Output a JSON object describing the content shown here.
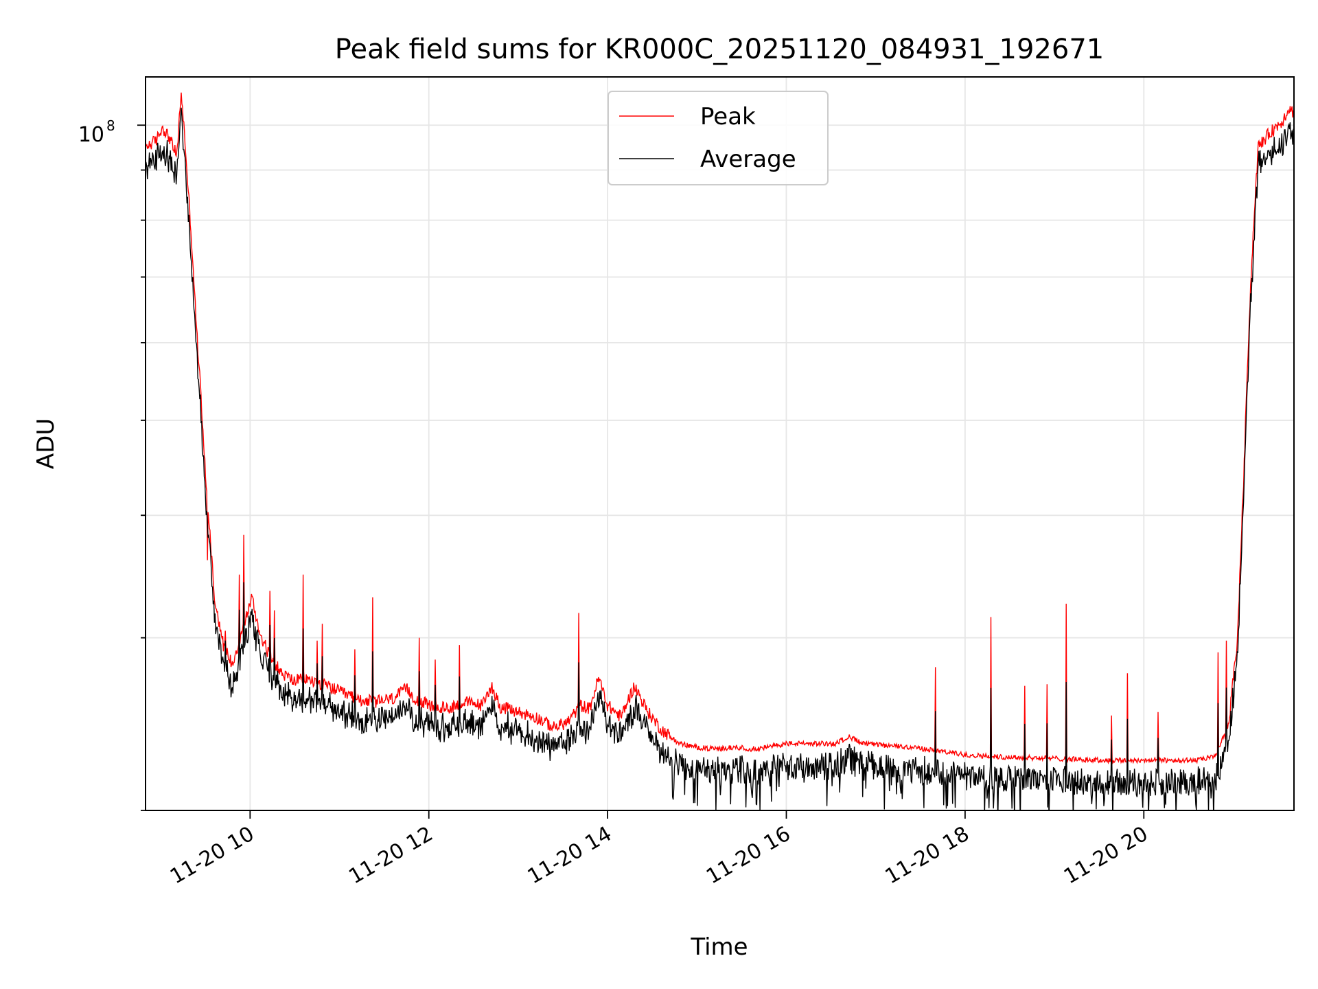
{
  "chart_data": {
    "type": "line",
    "title": "Peak field sums for KR000C_20251120_084931_192671",
    "xlabel": "Time",
    "ylabel": "ADU",
    "yscale": "log",
    "ytick_major": {
      "base": "10",
      "exponent": "8",
      "value": 100000000
    },
    "xlim_hours": [
      8.83,
      21.68
    ],
    "ylim": [
      20000000,
      112000000
    ],
    "grid": true,
    "legend_position": "top-center",
    "x_ticks": [
      {
        "hour": 10,
        "label": "11-20 10"
      },
      {
        "hour": 12,
        "label": "11-20 12"
      },
      {
        "hour": 14,
        "label": "11-20 14"
      },
      {
        "hour": 16,
        "label": "11-20 16"
      },
      {
        "hour": 18,
        "label": "11-20 18"
      },
      {
        "hour": 20,
        "label": "11-20 20"
      }
    ],
    "series": [
      {
        "name": "Peak",
        "color": "#ff0000"
      },
      {
        "name": "Average",
        "color": "#000000"
      }
    ],
    "baseline": [
      [
        8.83,
        95.0
      ],
      [
        8.95,
        96.5
      ],
      [
        9.02,
        99.5
      ],
      [
        9.1,
        97.0
      ],
      [
        9.18,
        93.0
      ],
      [
        9.23,
        108.0
      ],
      [
        9.3,
        88.0
      ],
      [
        9.4,
        62.0
      ],
      [
        9.5,
        44.0
      ],
      [
        9.6,
        33.0
      ],
      [
        9.7,
        29.5
      ],
      [
        9.8,
        28.2
      ],
      [
        9.9,
        30.2
      ],
      [
        10.02,
        33.0
      ],
      [
        10.1,
        30.5
      ],
      [
        10.2,
        29.0
      ],
      [
        10.35,
        27.6
      ],
      [
        10.5,
        27.1
      ],
      [
        10.6,
        27.3
      ],
      [
        10.7,
        27.1
      ],
      [
        10.8,
        26.9
      ],
      [
        10.9,
        26.7
      ],
      [
        11.05,
        26.3
      ],
      [
        11.2,
        26.0
      ],
      [
        11.4,
        25.8
      ],
      [
        11.6,
        26.0
      ],
      [
        11.75,
        26.6
      ],
      [
        11.85,
        26.0
      ],
      [
        12.0,
        25.6
      ],
      [
        12.2,
        25.4
      ],
      [
        12.4,
        25.8
      ],
      [
        12.6,
        25.6
      ],
      [
        12.7,
        26.8
      ],
      [
        12.8,
        25.5
      ],
      [
        13.0,
        25.2
      ],
      [
        13.2,
        24.9
      ],
      [
        13.4,
        24.3
      ],
      [
        13.55,
        24.6
      ],
      [
        13.7,
        25.6
      ],
      [
        13.8,
        25.4
      ],
      [
        13.9,
        27.3
      ],
      [
        14.0,
        25.6
      ],
      [
        14.15,
        24.9
      ],
      [
        14.3,
        26.8
      ],
      [
        14.45,
        25.2
      ],
      [
        14.6,
        24.2
      ],
      [
        14.7,
        23.8
      ],
      [
        14.8,
        23.4
      ],
      [
        15.0,
        23.2
      ],
      [
        15.2,
        23.1
      ],
      [
        15.45,
        23.2
      ],
      [
        15.6,
        23.1
      ],
      [
        15.8,
        23.2
      ],
      [
        16.0,
        23.4
      ],
      [
        16.3,
        23.4
      ],
      [
        16.55,
        23.4
      ],
      [
        16.7,
        23.8
      ],
      [
        16.85,
        23.4
      ],
      [
        17.1,
        23.3
      ],
      [
        17.4,
        23.2
      ],
      [
        17.7,
        23.0
      ],
      [
        18.0,
        22.8
      ],
      [
        18.3,
        22.7
      ],
      [
        18.6,
        22.65
      ],
      [
        19.0,
        22.6
      ],
      [
        19.5,
        22.5
      ],
      [
        20.0,
        22.5
      ],
      [
        20.3,
        22.5
      ],
      [
        20.6,
        22.5
      ],
      [
        20.8,
        22.7
      ],
      [
        20.95,
        24.5
      ],
      [
        21.05,
        30.0
      ],
      [
        21.12,
        44.0
      ],
      [
        21.2,
        70.0
      ],
      [
        21.28,
        95.0
      ],
      [
        21.4,
        98.0
      ],
      [
        21.55,
        101.0
      ],
      [
        21.62,
        104.0
      ],
      [
        21.68,
        103.0
      ]
    ],
    "spikes": [
      [
        9.52,
        36.0
      ],
      [
        9.72,
        30.5
      ],
      [
        9.88,
        34.8
      ],
      [
        9.93,
        38.2
      ],
      [
        10.22,
        33.5
      ],
      [
        10.27,
        32.0
      ],
      [
        10.59,
        34.8
      ],
      [
        10.75,
        29.8
      ],
      [
        10.81,
        31.0
      ],
      [
        11.17,
        29.2
      ],
      [
        11.37,
        33.0
      ],
      [
        11.89,
        30.0
      ],
      [
        12.07,
        28.5
      ],
      [
        12.34,
        29.5
      ],
      [
        13.68,
        31.8
      ],
      [
        17.67,
        28.0
      ],
      [
        18.29,
        31.5
      ],
      [
        18.67,
        26.8
      ],
      [
        18.92,
        26.9
      ],
      [
        19.13,
        32.5
      ],
      [
        19.64,
        25.0
      ],
      [
        19.82,
        27.6
      ],
      [
        20.16,
        25.2
      ],
      [
        20.83,
        29.0
      ],
      [
        20.92,
        29.8
      ]
    ]
  }
}
